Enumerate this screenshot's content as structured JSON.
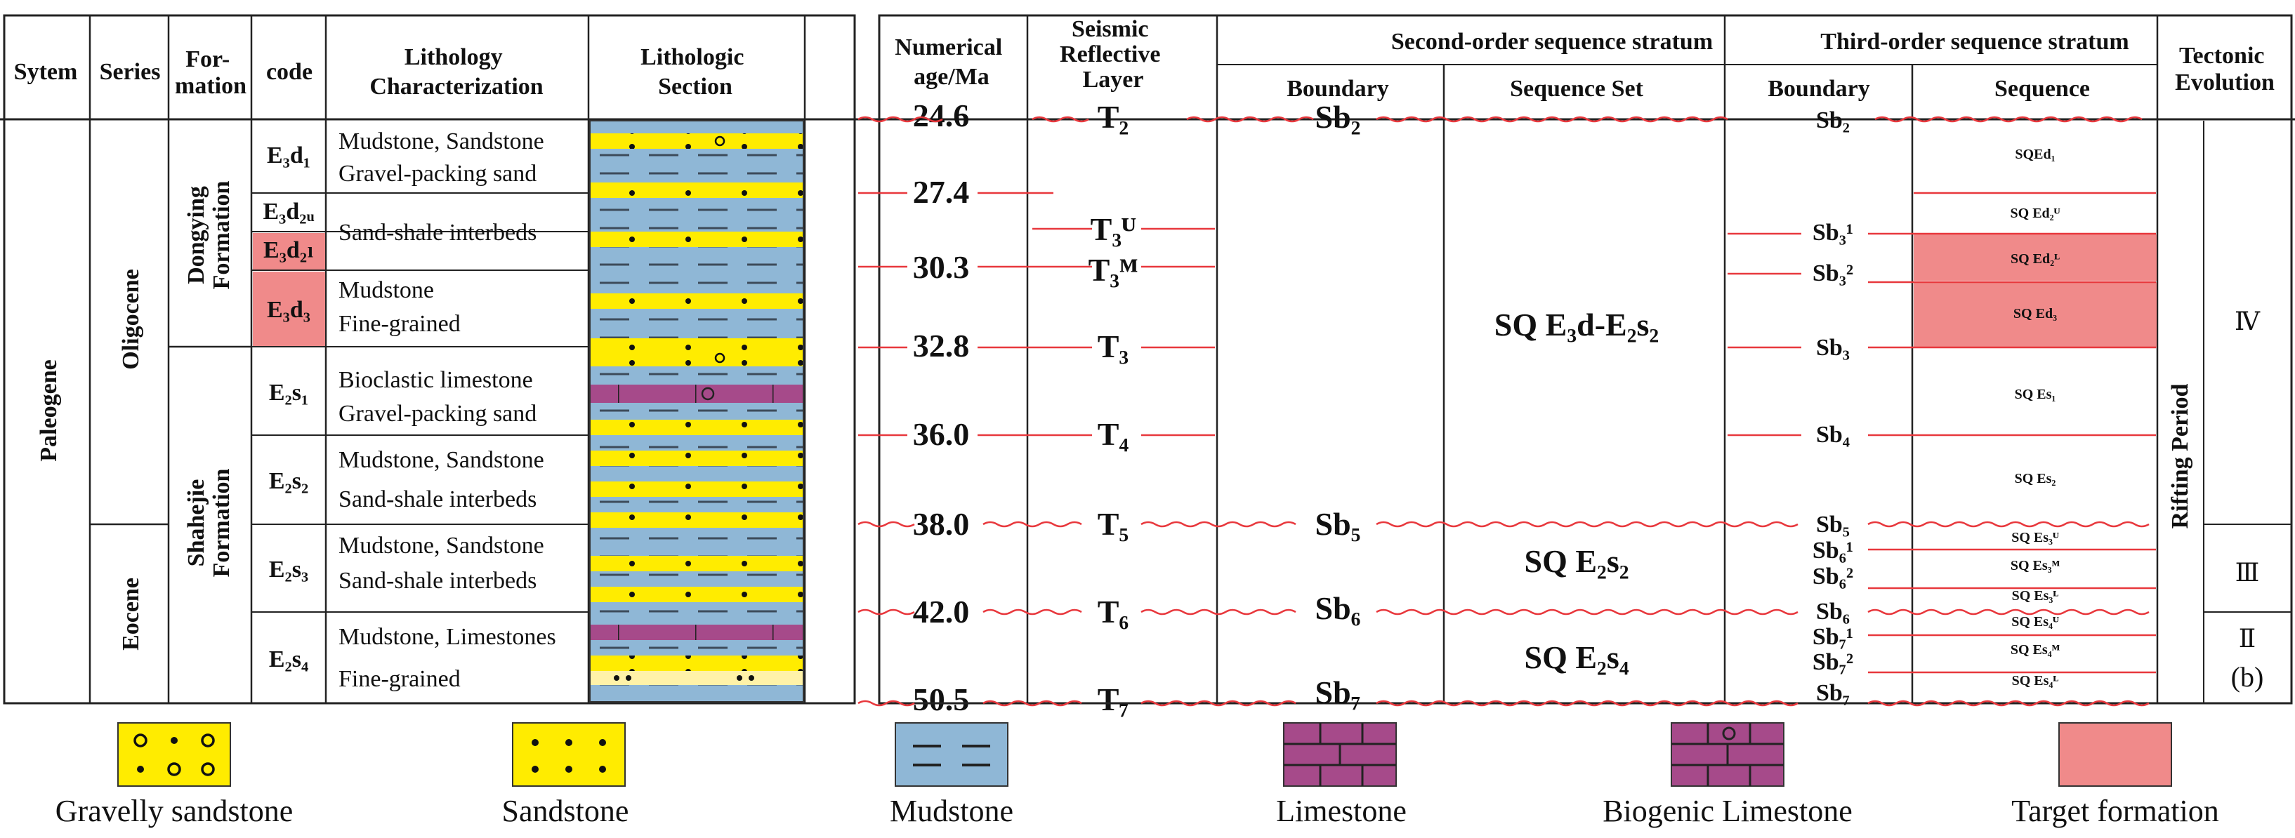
{
  "colors": {
    "sandstone": "#ffec00",
    "mudstone": "#8fb7d6",
    "limestone": "#a64a8a",
    "target": "#f08a8a",
    "boundary": "#e8383d"
  },
  "headers": {
    "system": "Sytem",
    "series": "Series",
    "formation": "For-\nmation",
    "code": "code",
    "lithology_char": "Lithology\nCharacterization",
    "lithologic_section": "Lithologic\nSection",
    "numerical_age": "Numerical\nage/Ma",
    "seismic": "Seismic\nReflective\nLayer",
    "second_order": "Second-order sequence stratum",
    "second_boundary": "Boundary",
    "second_set": "Sequence Set",
    "third_order": "Third-order sequence stratum",
    "third_boundary": "Boundary",
    "third_sequence": "Sequence",
    "tectonic": "Tectonic\nEvolution"
  },
  "system": "Paleogene",
  "series": [
    "Oligocene",
    "Eocene"
  ],
  "formations": [
    "Dongying\nFormation",
    "Shahejie\nFormation"
  ],
  "codes": [
    "E₃d₁",
    "E₃d₂ᵤ",
    "E₃d₂ₗ",
    "E₃d₃",
    "E₂s₁",
    "E₂s₂",
    "E₂s₃",
    "E₂s₄"
  ],
  "lithology": [
    "Mudstone, Sandstone",
    "Gravel-packing sand",
    "Sand-shale interbeds",
    "Mudstone",
    "Fine-grained",
    "Bioclastic limestone",
    "Gravel-packing sand",
    "Mudstone, Sandstone",
    "Sand-shale interbeds",
    "Mudstone, Sandstone",
    "Sand-shale interbeds",
    "Mudstone, Limestones",
    "Fine-grained"
  ],
  "ages": [
    "24.6",
    "27.4",
    "30.3",
    "32.8",
    "36.0",
    "38.0",
    "42.0",
    "50.5"
  ],
  "seismic": [
    "T₂",
    "T₃ᵁ",
    "T₃ᴹ",
    "T₃",
    "T₄",
    "T₅",
    "T₆",
    "T₇"
  ],
  "second_boundaries": [
    "Sb₂",
    "Sb₅",
    "Sb₆",
    "Sb₇"
  ],
  "sequence_sets": [
    "SQ E₃d-E₂s₂",
    "SQ E₂s₂",
    "SQ E₂s₄"
  ],
  "third_boundaries": [
    "Sb₂",
    "Sb₃¹",
    "Sb₃²",
    "Sb₃",
    "Sb₄",
    "Sb₅",
    "Sb₆¹",
    "Sb₆²",
    "Sb₆",
    "Sb₇¹",
    "Sb₇²",
    "Sb₇"
  ],
  "third_sequences": [
    "SQEd₁",
    "SQ Ed₂ᵁ",
    "SQ Ed₂ᴸ",
    "SQ Ed₃",
    "SQ Es₁",
    "SQ Es₂",
    "SQ Es₃ᵁ",
    "SQ Es₃ᴹ",
    "SQ Es₃ᴸ",
    "SQ Es₄ᵁ",
    "SQ Es₄ᴹ",
    "SQ Es₄ᴸ"
  ],
  "tectonic_period": "Rifting Period",
  "tectonic_stages": [
    "Ⅳ",
    "Ⅲ",
    "Ⅱ"
  ],
  "panel_label": "(b)",
  "legend": [
    "Gravelly sandstone",
    "Sandstone",
    "Mudstone",
    "Limestone",
    "Biogenic Limestone",
    "Target formation"
  ]
}
